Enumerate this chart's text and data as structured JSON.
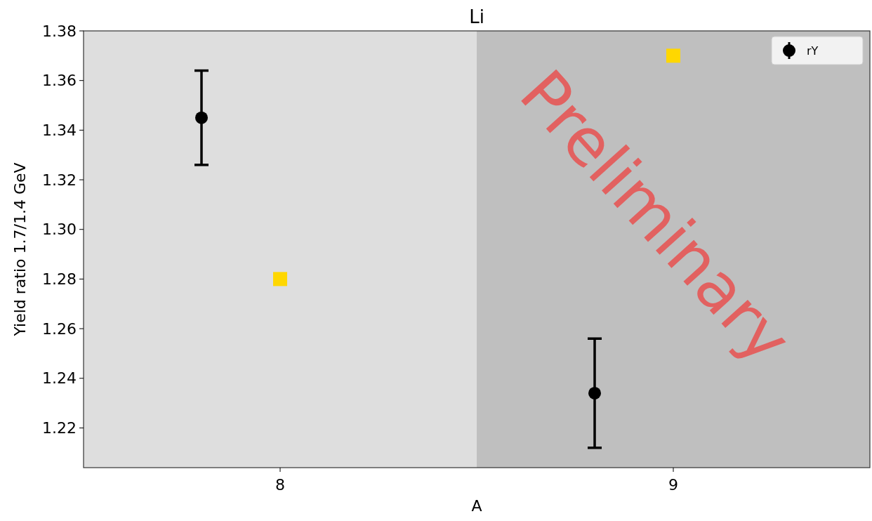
{
  "chart_data": {
    "type": "scatter",
    "title": "Li",
    "xlabel": "A",
    "ylabel": "Yield ratio 1.7/1.4 GeV",
    "xlim": [
      7.5,
      9.5
    ],
    "xticks": [
      8,
      9
    ],
    "ylim": [
      1.204,
      1.38
    ],
    "yticks": [
      1.22,
      1.24,
      1.26,
      1.28,
      {
        "value": 1.3,
        "label": "1.30"
      },
      1.32,
      1.34,
      1.36,
      1.38
    ],
    "series": [
      {
        "name": "rY",
        "color": "#000000",
        "x": [
          7.8,
          8.8
        ],
        "values": [
          1.345,
          1.234
        ],
        "errors": [
          0.019,
          0.022
        ],
        "marker": "circle"
      },
      {
        "color": "#ffd700",
        "x": [
          8,
          9
        ],
        "values": [
          1.28,
          1.37
        ],
        "marker": "square"
      }
    ],
    "bands": [
      {
        "axis": "x",
        "from": 7.5,
        "to": 8.5,
        "color": "#dedede"
      },
      {
        "axis": "x",
        "from": 8.5,
        "to": 9.5,
        "color": "#bfbfbf"
      }
    ],
    "annotations": [
      "Preliminary"
    ],
    "legend": "top right",
    "grid": false
  }
}
